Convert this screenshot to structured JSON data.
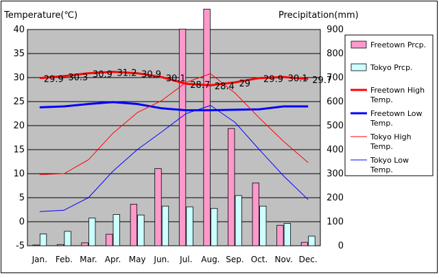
{
  "chart_data": {
    "type": "bar+line",
    "title": "",
    "y_left_label": "Temperature(℃)",
    "y_right_label": "Precipitation(mm)",
    "categories": [
      "Jan.",
      "Feb.",
      "Mar.",
      "Apr.",
      "May",
      "Jun.",
      "Jul.",
      "Aug.",
      "Sep.",
      "Oct.",
      "Nov.",
      "Dec."
    ],
    "y_left_ticks": [
      "-5",
      "0",
      "5",
      "10",
      "15",
      "20",
      "25",
      "30",
      "35",
      "40"
    ],
    "y_right_ticks": [
      "0",
      "100",
      "200",
      "300",
      "400",
      "500",
      "600",
      "700",
      "800",
      "900"
    ],
    "ylim_left": [
      -5,
      40
    ],
    "ylim_right": [
      0,
      900
    ],
    "bar_series": [
      {
        "name": "Freetown Prcp.",
        "color": "#ff99cc",
        "values": [
          3,
          5,
          12,
          48,
          173,
          321,
          902,
          985,
          488,
          261,
          85,
          14
        ]
      },
      {
        "name": "Tokyo Prcp.",
        "color": "#ccffff",
        "values": [
          49,
          60,
          115,
          130,
          128,
          165,
          162,
          155,
          209,
          165,
          93,
          40
        ]
      }
    ],
    "line_series": [
      {
        "name": "Freetown High Temp.",
        "color": "#ff0000",
        "width": "thick",
        "values": [
          29.9,
          30.3,
          30.9,
          31.2,
          30.9,
          30.1,
          28.7,
          28.4,
          29.0,
          29.9,
          30.1,
          29.7
        ]
      },
      {
        "name": "Freetown Low Temp.",
        "color": "#0000ff",
        "width": "thick",
        "values": [
          23.8,
          24.0,
          24.5,
          24.9,
          24.5,
          23.6,
          23.2,
          23.2,
          23.3,
          23.4,
          24.0,
          24.0
        ]
      },
      {
        "name": "Tokyo High Temp.",
        "color": "#ff0000",
        "width": "thin",
        "values": [
          9.8,
          10.0,
          12.9,
          18.4,
          22.7,
          25.2,
          29.0,
          30.8,
          26.8,
          21.6,
          16.7,
          12.3
        ]
      },
      {
        "name": "Tokyo Low Temp.",
        "color": "#0000ff",
        "width": "thin",
        "values": [
          2.1,
          2.4,
          5.0,
          10.5,
          15.0,
          18.7,
          22.5,
          24.2,
          20.7,
          15.0,
          9.5,
          4.6
        ]
      }
    ],
    "labels": [
      "29.9",
      "30.3",
      "30.9",
      "31.2",
      "30.9",
      "30.1",
      "28.7",
      "28.4",
      "29",
      "29.9",
      "30.1",
      "29.7"
    ],
    "legend": [
      {
        "kind": "bar",
        "color": "#ff99cc",
        "lines": [
          "Freetown Prcp."
        ]
      },
      {
        "kind": "bar",
        "color": "#ccffff",
        "lines": [
          "Tokyo Prcp."
        ]
      },
      {
        "kind": "line",
        "color": "#ff0000",
        "width": "thick",
        "lines": [
          "Freetown High",
          "Temp."
        ]
      },
      {
        "kind": "line",
        "color": "#0000ff",
        "width": "thick",
        "lines": [
          "Freetown Low",
          "Temp."
        ]
      },
      {
        "kind": "line",
        "color": "#ff0000",
        "width": "thin",
        "lines": [
          "Tokyo High",
          "Temp."
        ]
      },
      {
        "kind": "line",
        "color": "#0000ff",
        "width": "thin",
        "lines": [
          "Tokyo Low",
          "Temp."
        ]
      }
    ],
    "legend_position": "right",
    "plot_background": "#c0c0c0",
    "grid": true
  }
}
